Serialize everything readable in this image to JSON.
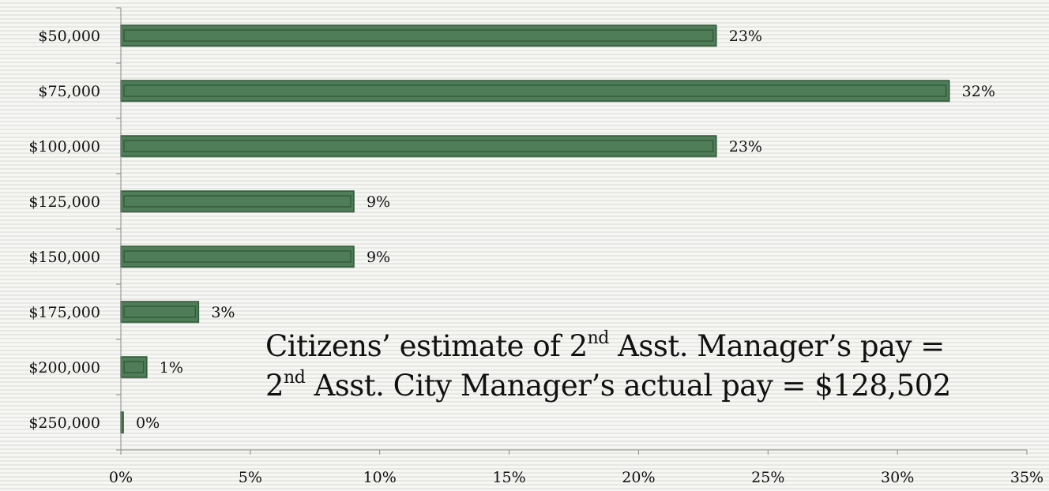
{
  "chart_data": {
    "type": "bar",
    "orientation": "horizontal",
    "categories": [
      "$50,000",
      "$75,000",
      "$100,000",
      "$125,000",
      "$150,000",
      "$175,000",
      "$200,000",
      "$250,000"
    ],
    "values": [
      23,
      32,
      23,
      9,
      9,
      3,
      1,
      0
    ],
    "value_labels": [
      "23%",
      "32%",
      "23%",
      "9%",
      "9%",
      "3%",
      "1%",
      "0%"
    ],
    "xlim": [
      0,
      35
    ],
    "xticks": [
      0,
      5,
      10,
      15,
      20,
      25,
      30,
      35
    ],
    "xtick_labels": [
      "0%",
      "5%",
      "10%",
      "15%",
      "20%",
      "25%",
      "30%",
      "35%"
    ],
    "bar_color": "#4e7d57",
    "bar_edge_color": "#2f5a37",
    "grid": false,
    "legend": "none",
    "annotations": [
      {
        "prefix": "Citizens’ estimate of 2",
        "sup": "nd",
        "suffix": " Asst. Manager’s pay  ="
      },
      {
        "prefix": "2",
        "sup": "nd",
        "suffix": " Asst. City Manager’s actual pay = $128,502"
      }
    ]
  }
}
